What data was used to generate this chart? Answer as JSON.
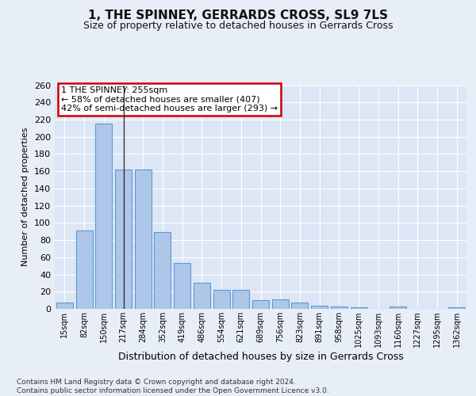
{
  "title": "1, THE SPINNEY, GERRARDS CROSS, SL9 7LS",
  "subtitle": "Size of property relative to detached houses in Gerrards Cross",
  "xlabel": "Distribution of detached houses by size in Gerrards Cross",
  "ylabel": "Number of detached properties",
  "categories": [
    "15sqm",
    "82sqm",
    "150sqm",
    "217sqm",
    "284sqm",
    "352sqm",
    "419sqm",
    "486sqm",
    "554sqm",
    "621sqm",
    "689sqm",
    "756sqm",
    "823sqm",
    "891sqm",
    "958sqm",
    "1025sqm",
    "1093sqm",
    "1160sqm",
    "1227sqm",
    "1295sqm",
    "1362sqm"
  ],
  "values": [
    7,
    91,
    215,
    162,
    162,
    89,
    53,
    30,
    22,
    22,
    10,
    11,
    7,
    4,
    3,
    2,
    0,
    3,
    0,
    0,
    2
  ],
  "bar_color": "#aec6e8",
  "bar_edge_color": "#5b9bd5",
  "highlight_bar_index": 3,
  "highlight_line_color": "#333333",
  "annotation_text": "1 THE SPINNEY: 255sqm\n← 58% of detached houses are smaller (407)\n42% of semi-detached houses are larger (293) →",
  "annotation_box_color": "#ffffff",
  "annotation_box_edge_color": "#cc0000",
  "bg_color": "#e8eef7",
  "plot_bg_color": "#dce6f5",
  "grid_color": "#ffffff",
  "footer_text": "Contains HM Land Registry data © Crown copyright and database right 2024.\nContains public sector information licensed under the Open Government Licence v3.0.",
  "ylim": [
    0,
    260
  ],
  "yticks": [
    0,
    20,
    40,
    60,
    80,
    100,
    120,
    140,
    160,
    180,
    200,
    220,
    240,
    260
  ],
  "title_fontsize": 11,
  "subtitle_fontsize": 9,
  "ylabel_fontsize": 8,
  "xlabel_fontsize": 9,
  "tick_fontsize": 8,
  "xtick_fontsize": 7,
  "footer_fontsize": 6.5,
  "annotation_fontsize": 8
}
